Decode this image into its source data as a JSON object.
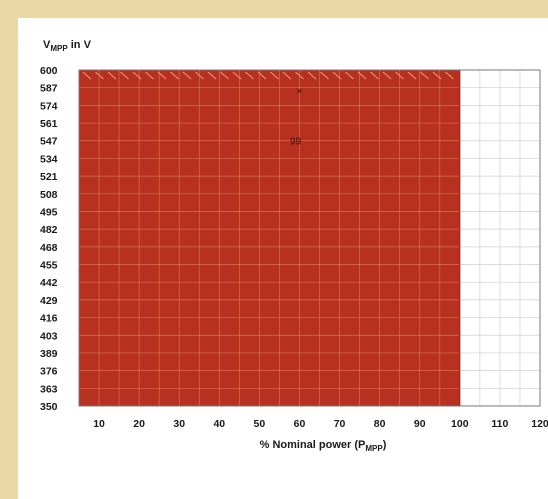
{
  "chart_data": {
    "type": "heatmap",
    "ylabel_main": "V",
    "ylabel_sub": "MPP",
    "ylabel_suffix": " in V",
    "xlabel_main": "% Nominal power (P",
    "xlabel_sub": "MPP",
    "xlabel_suffix": ")",
    "x_ticks": [
      10,
      20,
      30,
      40,
      50,
      60,
      70,
      80,
      90,
      100,
      110,
      120
    ],
    "y_ticks": [
      600,
      587,
      574,
      561,
      547,
      534,
      521,
      508,
      495,
      482,
      468,
      455,
      442,
      429,
      416,
      403,
      389,
      376,
      363,
      350
    ],
    "xlim": [
      5,
      120
    ],
    "ylim": [
      350,
      600
    ],
    "filled_region": {
      "x_max": 100,
      "color": "#b8301f"
    },
    "grid": true,
    "annotations": [
      {
        "label": "99",
        "x": 59,
        "y": 547
      },
      {
        "label": "×",
        "x": 60,
        "y": 585
      }
    ],
    "colors": {
      "fill": "#b8301f",
      "grid_on_fill": "#e08a5a",
      "grid": "#cfcfcf",
      "frame": "#777777"
    }
  }
}
